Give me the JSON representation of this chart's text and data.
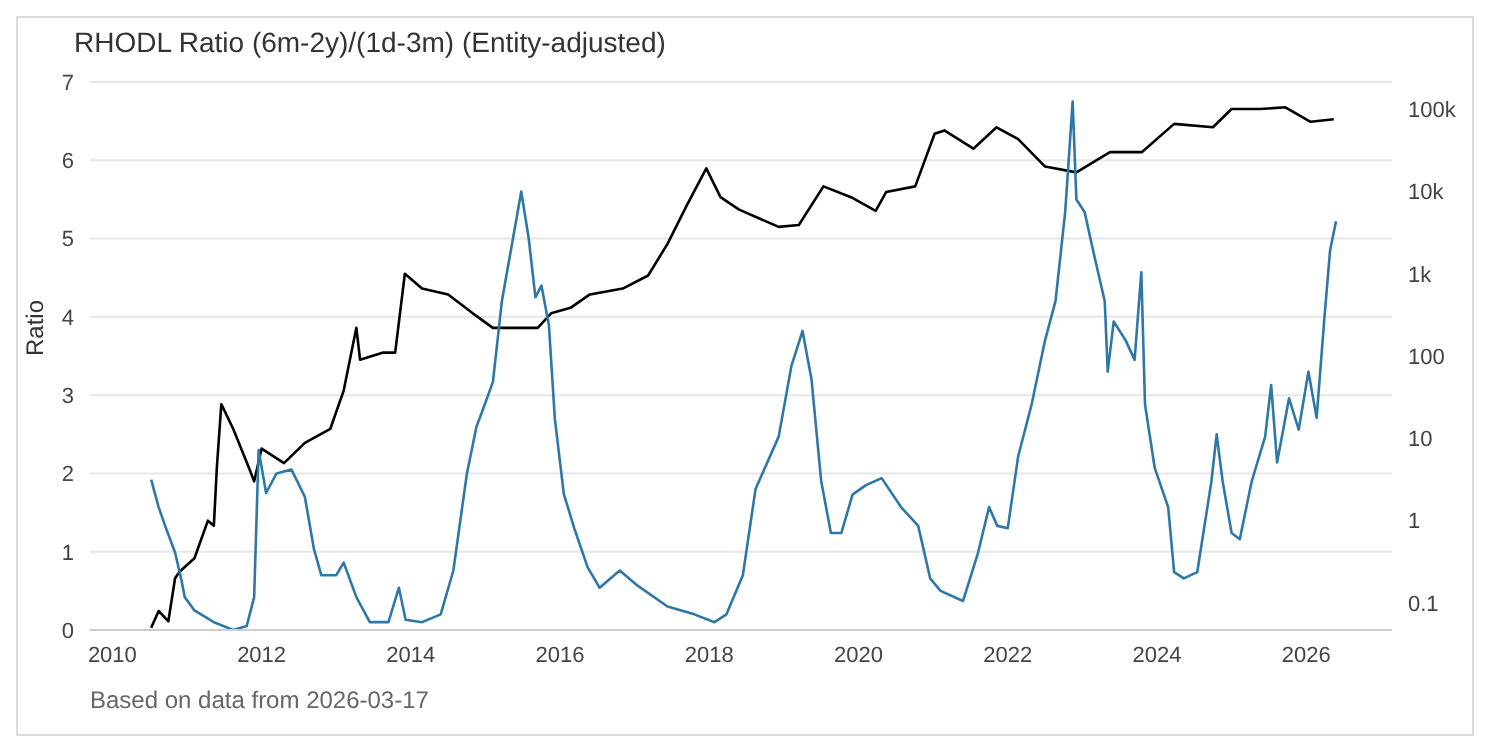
{
  "chart_data": {
    "type": "line",
    "title": "RHODL Ratio (6m-2y)/(1d-3m) (Entity-adjusted)",
    "ylabel": "Ratio",
    "annotations": [
      "Based on data from 2026-03-17"
    ],
    "xlim": [
      2009.7,
      2027.15
    ],
    "xticks": [
      2010,
      2012,
      2014,
      2016,
      2018,
      2020,
      2022,
      2024,
      2026
    ],
    "ylim": [
      0,
      7
    ],
    "yticks": [
      0,
      1,
      2,
      3,
      4,
      5,
      6,
      7
    ],
    "y2lim": [
      0.047,
      213000
    ],
    "y2ticks": [
      {
        "value": 0.1,
        "label": "0.1"
      },
      {
        "value": 1,
        "label": "1"
      },
      {
        "value": 10,
        "label": "10"
      },
      {
        "value": 100,
        "label": "100"
      },
      {
        "value": 1000,
        "label": "1k"
      },
      {
        "value": 10000,
        "label": "10k"
      },
      {
        "value": 100000,
        "label": "100k"
      }
    ],
    "log": "y2",
    "grid": "y",
    "legend": false,
    "marker": "none",
    "line_style": "solid",
    "series": [
      {
        "color": "#000000",
        "axis": "y2",
        "x": [
          2010.52,
          2010.62,
          2010.75,
          2010.84,
          2010.9,
          2011.1,
          2011.28,
          2011.36,
          2011.4,
          2011.46,
          2011.62,
          2011.83,
          2011.9,
          2012.0,
          2012.3,
          2012.58,
          2012.92,
          2013.1,
          2013.27,
          2013.32,
          2013.63,
          2013.79,
          2013.92,
          2014.15,
          2014.5,
          2014.83,
          2015.1,
          2015.35,
          2015.7,
          2015.88,
          2016.14,
          2016.4,
          2016.84,
          2017.18,
          2017.44,
          2017.7,
          2017.96,
          2018.15,
          2018.4,
          2018.93,
          2019.2,
          2019.53,
          2019.9,
          2020.23,
          2020.37,
          2020.76,
          2021.02,
          2021.15,
          2021.54,
          2021.85,
          2022.14,
          2022.5,
          2022.92,
          2023.37,
          2023.8,
          2024.23,
          2024.75,
          2025.0,
          2025.38,
          2025.72,
          2026.06,
          2026.37
        ],
        "values": [
          0.05,
          0.08,
          0.06,
          0.2,
          0.24,
          0.35,
          1.0,
          0.87,
          4.4,
          26,
          13,
          4.4,
          3,
          7.5,
          5,
          8.8,
          13,
          38,
          220,
          90,
          110,
          110,
          1000,
          660,
          560,
          330,
          220,
          220,
          220,
          330,
          385,
          560,
          660,
          950,
          2300,
          6800,
          19000,
          8500,
          6000,
          3700,
          3900,
          11500,
          8500,
          5800,
          9800,
          11500,
          50000,
          55000,
          33000,
          60000,
          43000,
          20000,
          17000,
          30000,
          30000,
          66000,
          60000,
          100000,
          100000,
          105000,
          70000,
          75000
        ]
      },
      {
        "color": "#2e78a8",
        "x": [
          2010.52,
          2010.62,
          2010.7,
          2010.84,
          2010.92,
          2010.97,
          2011.1,
          2011.36,
          2011.62,
          2011.8,
          2011.9,
          2011.96,
          2012.06,
          2012.2,
          2012.4,
          2012.58,
          2012.7,
          2012.8,
          2013.0,
          2013.1,
          2013.27,
          2013.45,
          2013.7,
          2013.84,
          2013.93,
          2014.15,
          2014.4,
          2014.57,
          2014.75,
          2014.88,
          2014.96,
          2015.1,
          2015.22,
          2015.35,
          2015.48,
          2015.58,
          2015.67,
          2015.75,
          2015.85,
          2015.93,
          2016.05,
          2016.19,
          2016.37,
          2016.53,
          2016.8,
          2017.02,
          2017.44,
          2017.8,
          2018.07,
          2018.23,
          2018.45,
          2018.62,
          2018.93,
          2019.1,
          2019.25,
          2019.37,
          2019.5,
          2019.63,
          2019.77,
          2019.92,
          2020.1,
          2020.31,
          2020.57,
          2020.8,
          2020.96,
          2021.1,
          2021.4,
          2021.6,
          2021.75,
          2021.86,
          2022.0,
          2022.14,
          2022.32,
          2022.5,
          2022.64,
          2022.77,
          2022.87,
          2022.92,
          2023.03,
          2023.16,
          2023.3,
          2023.34,
          2023.42,
          2023.58,
          2023.7,
          2023.79,
          2023.84,
          2023.97,
          2024.15,
          2024.23,
          2024.36,
          2024.54,
          2024.73,
          2024.8,
          2024.88,
          2025.0,
          2025.11,
          2025.27,
          2025.45,
          2025.53,
          2025.61,
          2025.77,
          2025.9,
          2026.03,
          2026.14,
          2026.24,
          2026.32,
          2026.4
        ],
        "values": [
          1.92,
          1.57,
          1.35,
          0.99,
          0.66,
          0.42,
          0.25,
          0.1,
          0.0,
          0.05,
          0.42,
          2.3,
          1.75,
          2.0,
          2.05,
          1.7,
          1.04,
          0.7,
          0.7,
          0.86,
          0.42,
          0.1,
          0.1,
          0.54,
          0.13,
          0.1,
          0.2,
          0.76,
          1.99,
          2.6,
          2.8,
          3.17,
          4.2,
          4.9,
          5.6,
          5.0,
          4.25,
          4.4,
          3.9,
          2.7,
          1.74,
          1.3,
          0.8,
          0.54,
          0.76,
          0.58,
          0.3,
          0.2,
          0.1,
          0.2,
          0.7,
          1.8,
          2.47,
          3.37,
          3.82,
          3.2,
          1.9,
          1.24,
          1.24,
          1.73,
          1.85,
          1.94,
          1.57,
          1.33,
          0.66,
          0.5,
          0.37,
          0.98,
          1.57,
          1.33,
          1.3,
          2.22,
          2.88,
          3.7,
          4.2,
          5.34,
          6.75,
          5.5,
          5.34,
          4.78,
          4.2,
          3.3,
          3.94,
          3.7,
          3.45,
          4.57,
          2.88,
          2.07,
          1.57,
          0.74,
          0.66,
          0.74,
          1.9,
          2.5,
          1.9,
          1.24,
          1.16,
          1.9,
          2.47,
          3.13,
          2.14,
          2.96,
          2.56,
          3.3,
          2.71,
          3.94,
          4.85,
          5.22
        ]
      }
    ]
  }
}
